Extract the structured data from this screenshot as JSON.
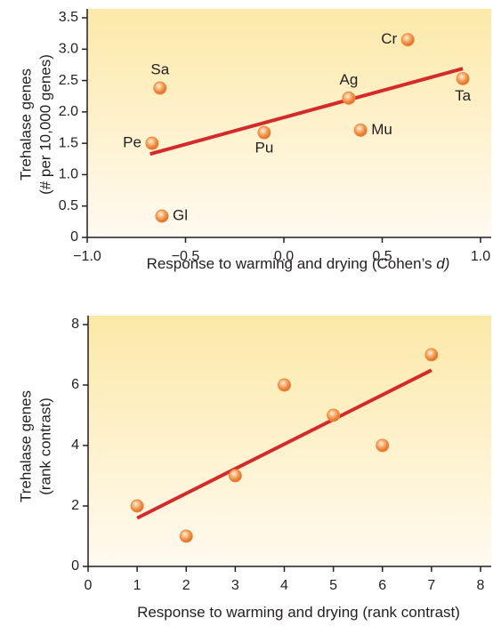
{
  "chart_data": [
    {
      "type": "scatter",
      "xlabel": [
        "Response to warming and drying (Cohen’s ",
        "d",
        ")"
      ],
      "ylabel": [
        "Trehalase genes",
        "(# per 10,000 genes)"
      ],
      "point_labels": [
        "Cr",
        "Sa",
        "Ag",
        "Ta",
        "Pe",
        "Pu",
        "Mu",
        "Gl"
      ],
      "x": [
        0.63,
        -0.63,
        0.33,
        0.91,
        -0.67,
        -0.1,
        0.39,
        -0.62
      ],
      "values": [
        3.15,
        2.38,
        2.22,
        2.53,
        1.5,
        1.67,
        1.71,
        0.34
      ],
      "color": "#f08a3c",
      "trend_line": {
        "x": [
          -0.68,
          0.91
        ],
        "y": [
          1.33,
          2.69
        ],
        "color": "#d42a2a"
      },
      "xlim": [
        -1.0,
        1.0
      ],
      "xticks": [
        {
          "value": -1.0,
          "label": "−1.0"
        },
        {
          "value": -0.5,
          "label": "−0.5"
        },
        {
          "value": 0,
          "label": "0.0"
        },
        0.5,
        {
          "value": 1.0,
          "label": "1.0"
        }
      ],
      "ylim": [
        0,
        3.5
      ],
      "yticks": [
        0,
        0.5,
        {
          "value": 1.0,
          "label": "1.0"
        },
        1.5,
        {
          "value": 2.0,
          "label": "2.0"
        },
        2.5,
        {
          "value": 3.0,
          "label": "3.0"
        },
        3.5
      ]
    },
    {
      "type": "scatter",
      "xlabel": [
        "Response to warming and drying (rank contrast)"
      ],
      "ylabel": [
        "Trehalase genes",
        "(rank contrast)"
      ],
      "x": [
        1,
        2,
        3,
        4,
        5,
        6,
        7
      ],
      "values": [
        2,
        1,
        3,
        6,
        5,
        4,
        7
      ],
      "color": "#f08a3c",
      "trend_line": {
        "x": [
          1,
          7
        ],
        "y": [
          1.6,
          6.49
        ],
        "color": "#d42a2a"
      },
      "xlim": [
        0,
        8
      ],
      "xticks": [
        0,
        1,
        2,
        3,
        4,
        5,
        6,
        7,
        8
      ],
      "ylim": [
        0,
        8
      ],
      "yticks": [
        0,
        2,
        4,
        6,
        8
      ]
    }
  ]
}
